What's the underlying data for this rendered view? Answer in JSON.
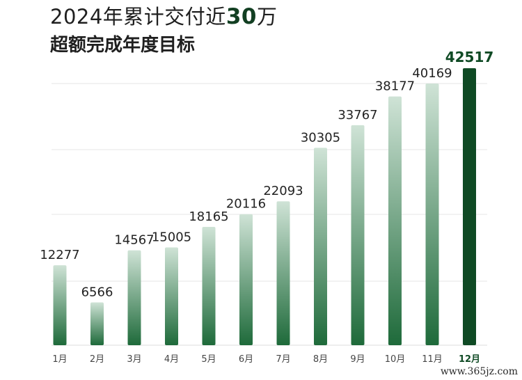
{
  "header": {
    "title_prefix": "2024年累计交付近",
    "title_number": "30",
    "title_suffix": "万",
    "subtitle": "超额完成年度目标"
  },
  "watermark": "www.365jz.com",
  "colors": {
    "bar_gradient_top": "#cfe3d6",
    "bar_gradient_bottom": "#1e6a3a",
    "highlight_bar": "#0f4a24",
    "highlight_label": "#0f4a24",
    "gridline": "#e6e6e6",
    "text": "#222222"
  },
  "chart_data": {
    "type": "bar",
    "categories": [
      "1月",
      "2月",
      "3月",
      "4月",
      "5月",
      "6月",
      "7月",
      "8月",
      "9月",
      "10月",
      "11月",
      "12月"
    ],
    "values": [
      12277,
      6566,
      14567,
      15005,
      18165,
      20116,
      22093,
      30305,
      33767,
      38177,
      40169,
      42517
    ],
    "highlight_index": 11,
    "title": "",
    "xlabel": "",
    "ylabel": "",
    "ylim": [
      0,
      42517
    ],
    "grid": true,
    "legend": "none"
  }
}
